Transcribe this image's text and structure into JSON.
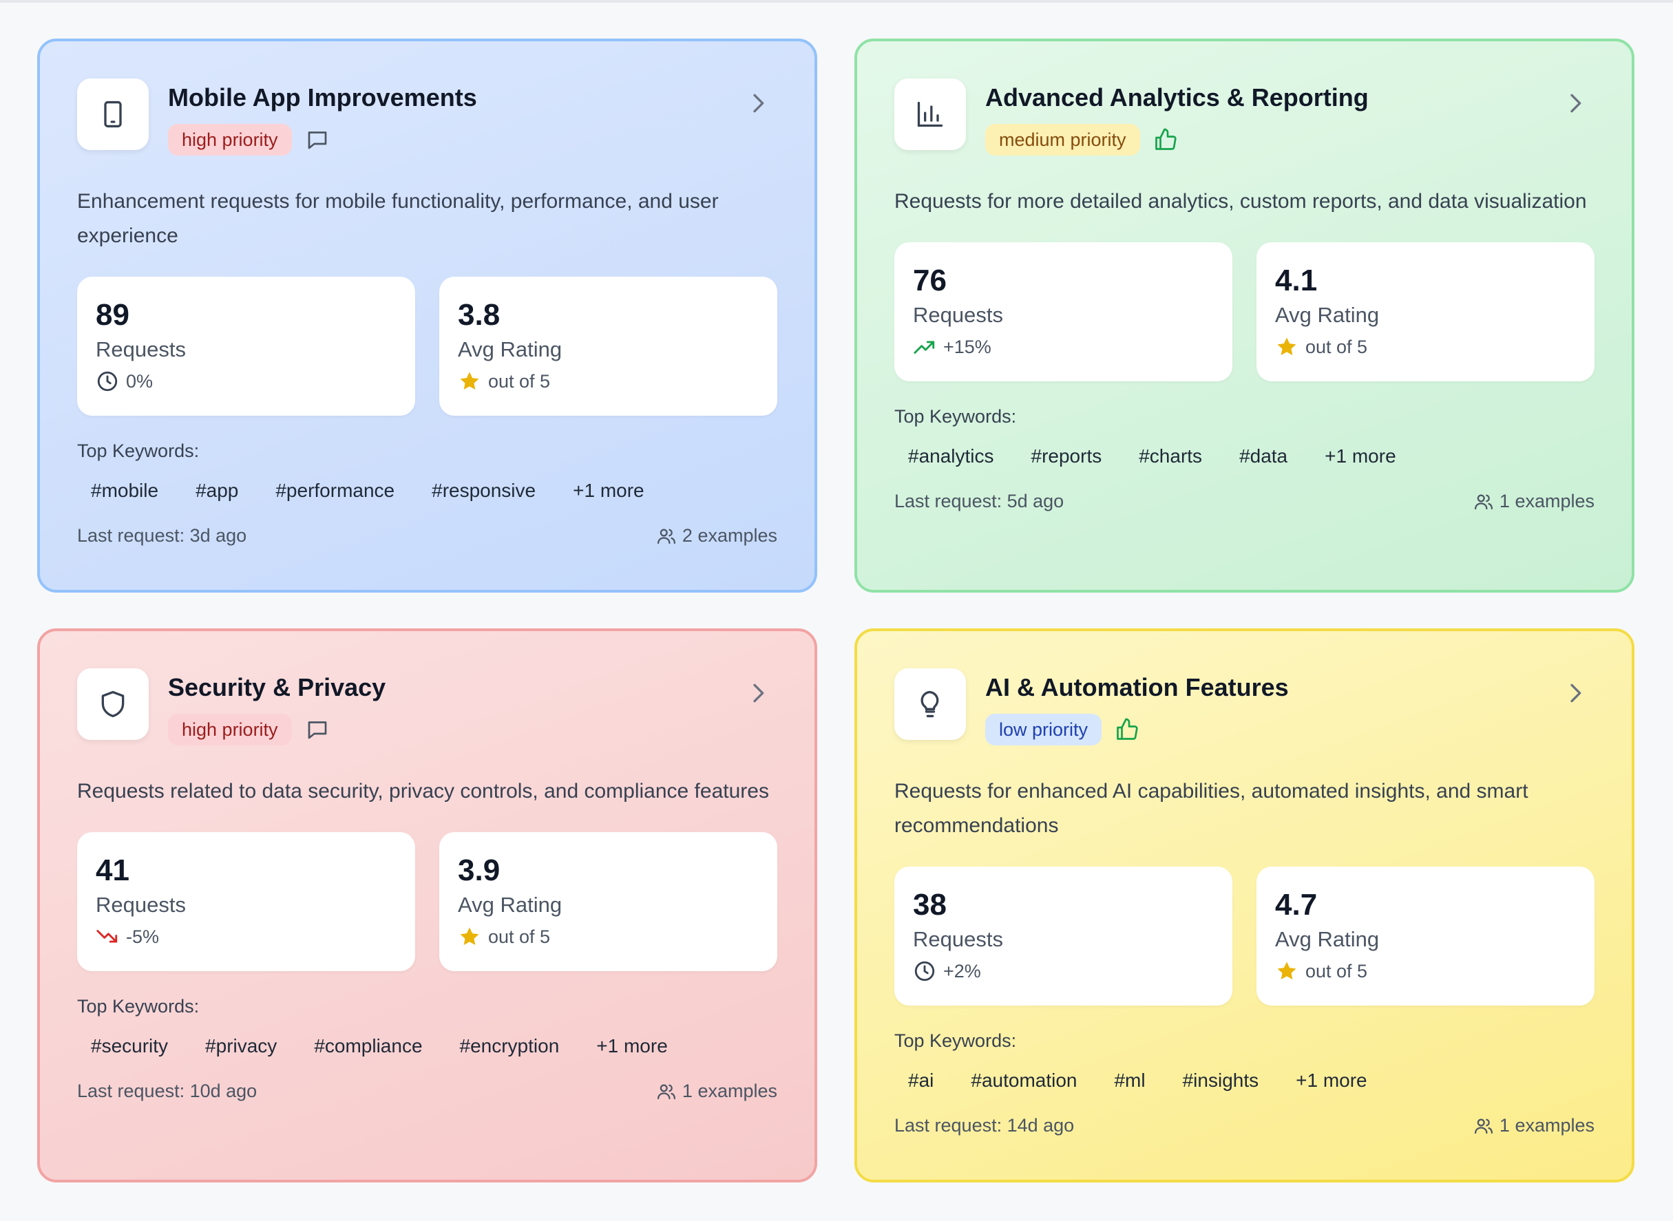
{
  "colors": {
    "high_priority_bg": "#fbd3d6",
    "medium_priority_bg": "#fdf0b3",
    "low_priority_bg": "#d6e6fd",
    "trend_up": "#16a34a",
    "trend_down": "#dc2626",
    "star": "#eab308"
  },
  "cards": [
    {
      "icon": "mobile-icon",
      "title": "Mobile App Improvements",
      "priority": "high priority",
      "badge_icon": "comment-icon",
      "description": "Enhancement requests for mobile functionality, performance, and user experience",
      "requests_value": "89",
      "requests_label": "Requests",
      "requests_change": "0%",
      "change_icon": "clock-icon",
      "rating_value": "3.8",
      "rating_label": "Avg Rating",
      "rating_sub": "out of 5",
      "keywords_label": "Top Keywords:",
      "keywords": [
        "#mobile",
        "#app",
        "#performance",
        "#responsive",
        "+1 more"
      ],
      "last_request": "Last request: 3d ago",
      "examples": "2 examples"
    },
    {
      "icon": "bar-chart-icon",
      "title": "Advanced Analytics & Reporting",
      "priority": "medium priority",
      "badge_icon": "thumbs-up-icon",
      "description": "Requests for more detailed analytics, custom reports, and data visualization",
      "requests_value": "76",
      "requests_label": "Requests",
      "requests_change": "+15%",
      "change_icon": "trending-up-icon",
      "rating_value": "4.1",
      "rating_label": "Avg Rating",
      "rating_sub": "out of 5",
      "keywords_label": "Top Keywords:",
      "keywords": [
        "#analytics",
        "#reports",
        "#charts",
        "#data",
        "+1 more"
      ],
      "last_request": "Last request: 5d ago",
      "examples": "1 examples"
    },
    {
      "icon": "shield-icon",
      "title": "Security & Privacy",
      "priority": "high priority",
      "badge_icon": "comment-icon",
      "description": "Requests related to data security, privacy controls, and compliance features",
      "requests_value": "41",
      "requests_label": "Requests",
      "requests_change": "-5%",
      "change_icon": "trending-down-icon",
      "rating_value": "3.9",
      "rating_label": "Avg Rating",
      "rating_sub": "out of 5",
      "keywords_label": "Top Keywords:",
      "keywords": [
        "#security",
        "#privacy",
        "#compliance",
        "#encryption",
        "+1 more"
      ],
      "last_request": "Last request: 10d ago",
      "examples": "1 examples"
    },
    {
      "icon": "lightbulb-icon",
      "title": "AI & Automation Features",
      "priority": "low priority",
      "badge_icon": "thumbs-up-icon",
      "description": "Requests for enhanced AI capabilities, automated insights, and smart recommendations",
      "requests_value": "38",
      "requests_label": "Requests",
      "requests_change": "+2%",
      "change_icon": "clock-icon",
      "rating_value": "4.7",
      "rating_label": "Avg Rating",
      "rating_sub": "out of 5",
      "keywords_label": "Top Keywords:",
      "keywords": [
        "#ai",
        "#automation",
        "#ml",
        "#insights",
        "+1 more"
      ],
      "last_request": "Last request: 14d ago",
      "examples": "1 examples"
    }
  ]
}
